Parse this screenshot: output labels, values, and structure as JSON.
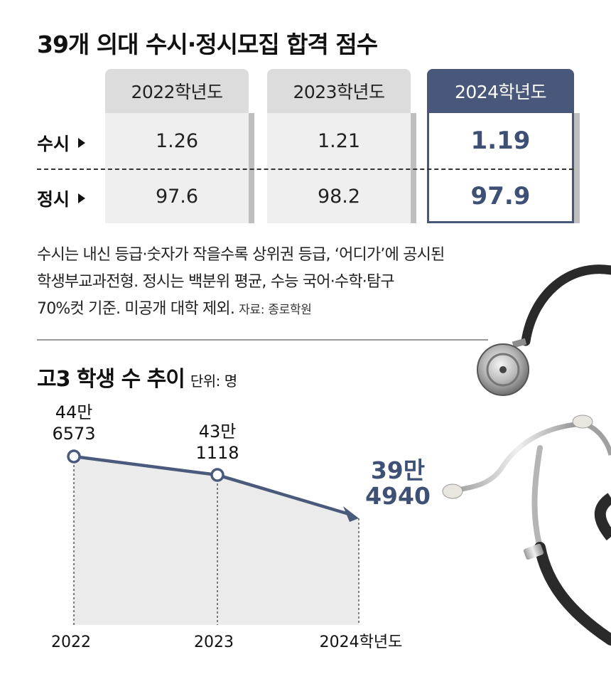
{
  "title": "39개 의대 수시·정시모집 합격 점수",
  "table": {
    "columns": [
      "2022학년도",
      "2023학년도",
      "2024학년도"
    ],
    "highlight_column": 2,
    "rows": [
      {
        "label": "수시",
        "values": [
          "1.26",
          "1.21",
          "1.19"
        ]
      },
      {
        "label": "정시",
        "values": [
          "97.6",
          "98.2",
          "97.9"
        ]
      }
    ]
  },
  "note": {
    "lines": [
      "수시는 내신 등급·숫자가 작을수록 상위권 등급, ‘어디가’에 공시된",
      "학생부교과전형. 정시는 백분위 평균, 수능 국어·수학·탐구",
      "70%컷 기준. 미공개 대학 제외."
    ],
    "source": "자료: 종로학원"
  },
  "chart_title": "고3 학생 수 추이",
  "chart_unit": "단위: 명",
  "chart_data": {
    "type": "line",
    "x": [
      "2022",
      "2023",
      "2024학년도"
    ],
    "series": [
      {
        "values": [
          446573,
          431118,
          394940
        ]
      }
    ],
    "data_labels": [
      [
        "44만",
        "6573"
      ],
      [
        "43만",
        "1118"
      ],
      [
        "39만",
        "4940"
      ]
    ],
    "ylim": [
      0,
      460000
    ]
  },
  "colors": {
    "accent": "#49587a",
    "line": "#4a5a7c",
    "area": "#ebebeb",
    "header": "#dcdcdc",
    "cell": "#efefef"
  }
}
